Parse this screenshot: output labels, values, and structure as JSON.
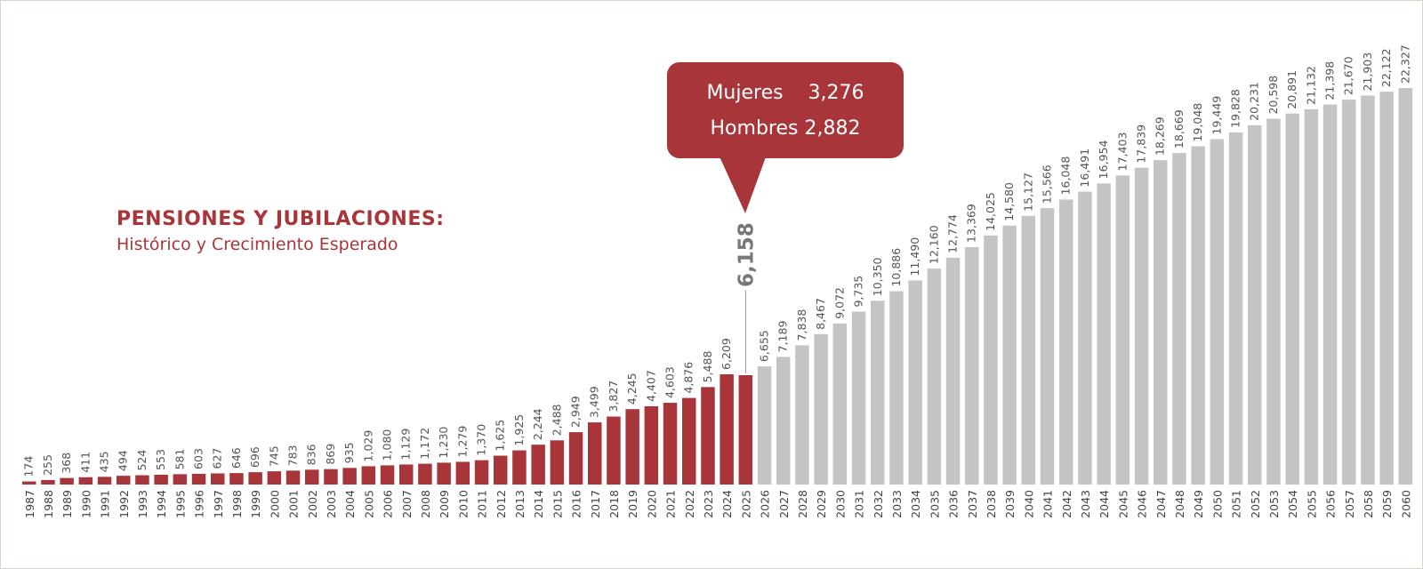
{
  "title": "PENSIONES Y JUBILACIONES:",
  "subtitle": "Histórico y Crecimiento Esperado",
  "colors": {
    "historic": "#a8353a",
    "projected": "#c4c4c4",
    "text": "#555555",
    "callout": "#a8353a"
  },
  "callout": {
    "rows": [
      {
        "label": "Mujeres",
        "value": "3,276"
      },
      {
        "label": "Hombres",
        "value": "2,882"
      }
    ]
  },
  "chart_data": {
    "type": "bar",
    "title": "PENSIONES Y JUBILACIONES:",
    "subtitle": "Histórico y Crecimiento Esperado",
    "xlabel": "",
    "ylabel": "",
    "ylim": [
      0,
      22327
    ],
    "highlight": {
      "category": "2025",
      "label": "6,158"
    },
    "categories": [
      "1987",
      "1988",
      "1989",
      "1990",
      "1991",
      "1992",
      "1993",
      "1994",
      "1995",
      "1996",
      "1997",
      "1998",
      "1999",
      "2000",
      "2001",
      "2002",
      "2003",
      "2004",
      "2005",
      "2006",
      "2007",
      "2008",
      "2009",
      "2010",
      "2011",
      "2012",
      "2013",
      "2014",
      "2015",
      "2016",
      "2017",
      "2018",
      "2019",
      "2020",
      "2021",
      "2022",
      "2023",
      "2024",
      "2025",
      "2026",
      "2027",
      "2028",
      "2029",
      "2030",
      "2031",
      "2032",
      "2033",
      "2034",
      "2035",
      "2036",
      "2037",
      "2038",
      "2039",
      "2040",
      "2041",
      "2042",
      "2043",
      "2044",
      "2045",
      "2046",
      "2047",
      "2048",
      "2049",
      "2050",
      "2051",
      "2052",
      "2053",
      "2054",
      "2055",
      "2056",
      "2057",
      "2058",
      "2059",
      "2060"
    ],
    "values": [
      174,
      255,
      368,
      411,
      435,
      494,
      524,
      553,
      581,
      603,
      627,
      646,
      696,
      745,
      783,
      836,
      869,
      935,
      1029,
      1080,
      1129,
      1172,
      1230,
      1279,
      1370,
      1625,
      1925,
      2244,
      2488,
      2949,
      3499,
      3827,
      4245,
      4407,
      4603,
      4876,
      5488,
      6209,
      6158,
      6655,
      7189,
      7838,
      8467,
      9072,
      9735,
      10350,
      10886,
      11490,
      12160,
      12774,
      13369,
      14025,
      14580,
      15127,
      15566,
      16048,
      16491,
      16954,
      17403,
      17839,
      18269,
      18669,
      19048,
      19449,
      19828,
      20231,
      20598,
      20891,
      21132,
      21398,
      21670,
      21903,
      22122,
      22327
    ],
    "labels": [
      "174",
      "255",
      "368",
      "411",
      "435",
      "494",
      "524",
      "553",
      "581",
      "603",
      "627",
      "646",
      "696",
      "745",
      "783",
      "836",
      "869",
      "935",
      "1,029",
      "1,080",
      "1,129",
      "1,172",
      "1,230",
      "1,279",
      "1,370",
      "1,625",
      "1,925",
      "2,244",
      "2,488",
      "2,949",
      "3,499",
      "3,827",
      "4,245",
      "4,407",
      "4,603",
      "4,876",
      "5,488",
      "6,209",
      "",
      "6,655",
      "7,189",
      "7,838",
      "8,467",
      "9,072",
      "9,735",
      "10,350",
      "10,886",
      "11,490",
      "12,160",
      "12,774",
      "13,369",
      "14,025",
      "14,580",
      "15,127",
      "15,566",
      "16,048",
      "16,491",
      "16,954",
      "17,403",
      "17,839",
      "18,269",
      "18,669",
      "19,048",
      "19,449",
      "19,828",
      "20,231",
      "20,598",
      "20,891",
      "21,132",
      "21,398",
      "21,670",
      "21,903",
      "22,122",
      "22,327"
    ],
    "historic_through": "2025",
    "grid": false,
    "legend": "none"
  }
}
